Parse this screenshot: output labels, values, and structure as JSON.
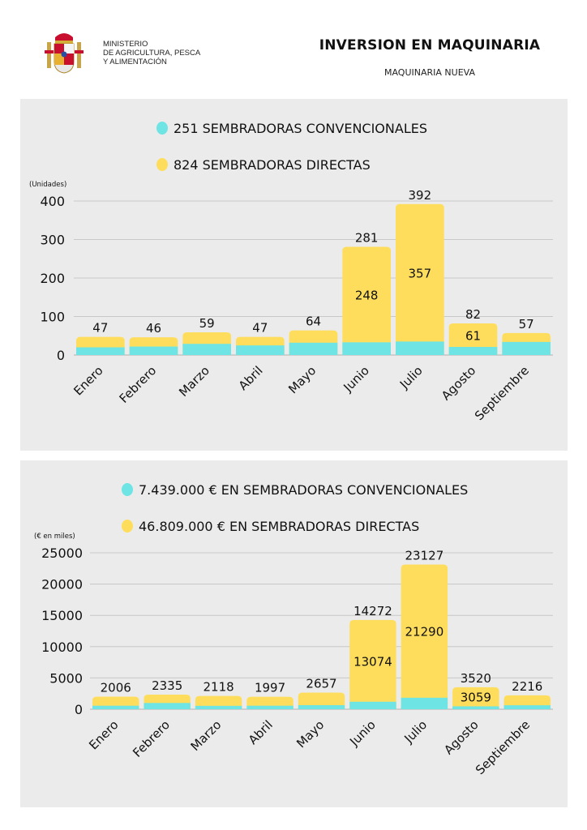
{
  "header": {
    "ministry_lines": [
      "MINISTERIO",
      "DE AGRICULTURA, PESCA",
      "Y ALIMENTACIÓN"
    ],
    "title": "INVERSION EN MAQUINARIA",
    "subtitle": "MAQUINARIA NUEVA",
    "logo_icon": "spain-coat-of-arms-icon"
  },
  "colors": {
    "convencionales": "#6ee4e4",
    "directas": "#ffdd5c",
    "panel_bg": "#ebebeb",
    "grid": "#c8c8c8"
  },
  "chart_data": [
    {
      "type": "bar",
      "stacked": true,
      "title": "",
      "ylabel": "(Unidades)",
      "xlabel": "",
      "ylim": [
        0,
        400
      ],
      "yticks": [
        0,
        100,
        200,
        300,
        400
      ],
      "grid": true,
      "legend_position": "top-center",
      "categories": [
        "Enero",
        "Febrero",
        "Marzo",
        "Abril",
        "Mayo",
        "Junio",
        "Julio",
        "Agosto",
        "Septiembre"
      ],
      "series": [
        {
          "name": "251 SEMBRADORAS CONVENCIONALES",
          "key": "convencionales",
          "values": [
            20,
            22,
            29,
            25,
            32,
            33,
            35,
            21,
            34
          ]
        },
        {
          "name": "824 SEMBRADORAS DIRECTAS",
          "key": "directas",
          "values": [
            27,
            24,
            30,
            22,
            32,
            248,
            357,
            61,
            23
          ]
        }
      ],
      "totals": [
        47,
        46,
        59,
        47,
        64,
        281,
        392,
        82,
        57
      ],
      "inner_labels": [
        "",
        "",
        "",
        "",
        "",
        "248",
        "357",
        "61",
        ""
      ]
    },
    {
      "type": "bar",
      "stacked": true,
      "title": "",
      "ylabel": "(€ en miles)",
      "xlabel": "",
      "ylim": [
        0,
        25000
      ],
      "yticks": [
        0,
        5000,
        10000,
        15000,
        20000,
        25000
      ],
      "grid": true,
      "legend_position": "top-center",
      "categories": [
        "Enero",
        "Febrero",
        "Marzo",
        "Abril",
        "Mayo",
        "Junio",
        "Julio",
        "Agosto",
        "Septiembre"
      ],
      "series": [
        {
          "name": "7.439.000 € EN SEMBRADORAS CONVENCIONALES",
          "key": "convencionales",
          "values": [
            560,
            1000,
            540,
            560,
            650,
            1198,
            1837,
            461,
            633
          ]
        },
        {
          "name": "46.809.000 € EN SEMBRADORAS DIRECTAS",
          "key": "directas",
          "values": [
            1446,
            1335,
            1578,
            1437,
            2007,
            13074,
            21290,
            3059,
            1583
          ]
        }
      ],
      "totals": [
        2006,
        2335,
        2118,
        1997,
        2657,
        14272,
        23127,
        3520,
        2216
      ],
      "inner_labels": [
        "",
        "",
        "",
        "",
        "",
        "13074",
        "21290",
        "3059",
        ""
      ]
    }
  ]
}
